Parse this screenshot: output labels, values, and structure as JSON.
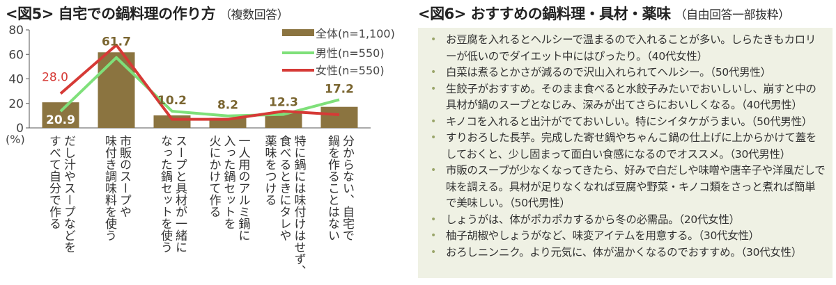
{
  "fig5": {
    "title": "<図5> 自宅での鍋料理の作り方",
    "subtitle": "（複数回答）"
  },
  "fig6": {
    "title": "<図6> おすすめの鍋料理・具材・薬味",
    "subtitle": "（自由回答一部抜粋）",
    "items": [
      "お豆腐を入れるとヘルシーで温まるので入れることが多い。しらたきもカロリーが低いのでダイエット中にはぴったり。（40代女性）",
      "白菜は煮るとかさが減るので沢山入れられてヘルシー。（50代男性）",
      "生餃子がおすすめ。そのまま食べると水餃子みたいでおいしいし、崩すと中の具材が鍋のスープとなじみ、深みが出てさらにおいしくなる。（40代男性）",
      "キノコを入れると出汁がでておいしい。特にシイタケがうまい。（50代男性）",
      "すりおろした長芋。完成した寄せ鍋やちゃんこ鍋の仕上げに上からかけて蓋をしておくと、少し固まって面白い食感になるのでオススメ。（30代男性）",
      "市販のスープが少なくなってきたら、好みで白だしや味噌や唐辛子や洋風だしで味を調える。具材が足りなくなれば豆腐や野菜・キノコ類をさっと煮れば簡単で美味しい。（50代男性）",
      "しょうがは、体がポカポカするから冬の必需品。（20代女性）",
      "柚子胡椒やしょうがなど、味変アイテムを用意する。（30代女性）",
      "おろしニンニク。より元気に、体が温かくなるのでおすすめ。（30代女性）"
    ],
    "bullet": "•"
  },
  "chart_data": {
    "type": "bar+line",
    "title": "<図5> 自宅での鍋料理の作り方（複数回答）",
    "ylabel": "(%)",
    "ylim": [
      0,
      80
    ],
    "yticks": [
      "0",
      "20",
      "40",
      "60",
      "80"
    ],
    "categories": [
      "だし汁やスープなどを\nすべて自分で作る",
      "市販のスープや\n味付き調味料を使う",
      "スープと具材が一緒に\nなった鍋セットを使う",
      "一人用のアルミ鍋に\n入った鍋セットを\n火にかけて作る",
      "特に鍋には味付けはせず、\n食べるときにタレや\n薬味をつける",
      "分からない、自宅で\n鍋を作ることはない"
    ],
    "series": [
      {
        "name": "全体(n=1,100)",
        "kind": "bar",
        "color": "#8b7440",
        "values": [
          20.9,
          61.7,
          10.2,
          8.2,
          12.3,
          17.2
        ],
        "labels": [
          "20.9",
          "61.7",
          "10.2",
          "8.2",
          "12.3",
          "17.2"
        ]
      },
      {
        "name": "男性(n=550)",
        "kind": "line",
        "color": "#7fe07a",
        "values": [
          13.6,
          57.4,
          13.6,
          9.8,
          11.0,
          23.0
        ]
      },
      {
        "name": "女性(n=550)",
        "kind": "line",
        "color": "#d63a36",
        "values": [
          28.0,
          67.6,
          7.0,
          7.0,
          13.6,
          10.8
        ],
        "labels": [
          "28.0"
        ]
      }
    ],
    "legend": "top-right",
    "grid": false
  }
}
